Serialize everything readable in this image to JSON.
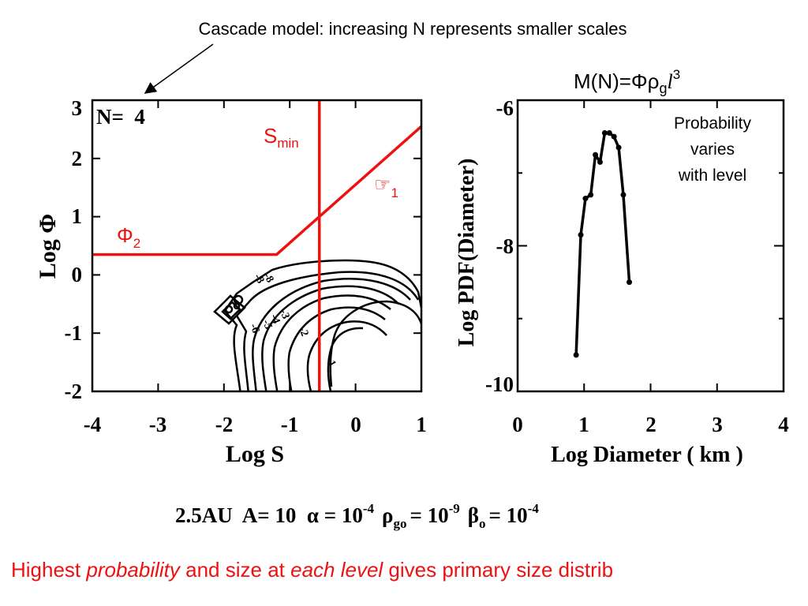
{
  "header": {
    "caption": "Cascade model: increasing N represents smaller scales"
  },
  "colors": {
    "red": "#ee1111",
    "black": "#000000"
  },
  "chart_data": [
    {
      "type": "contour",
      "panel_label": "N=  4",
      "xlabel": "Log S",
      "ylabel": "Log Φ",
      "xlim": [
        -4,
        1
      ],
      "ylim": [
        -2,
        3
      ],
      "x_ticks": [
        "-4",
        "-3",
        "-2",
        "-1",
        "0",
        "1"
      ],
      "y_ticks": [
        "-2",
        "-1",
        "0",
        "1",
        "2",
        "3"
      ],
      "contour_labels": [
        "-8",
        "-8",
        "-6",
        "-5",
        "-4",
        "-3",
        "-2",
        "-1"
      ],
      "annotations": {
        "smin": {
          "base": "S",
          "sub": "min"
        },
        "phi1": {
          "base": "☞",
          "sub": "1"
        },
        "phi2": {
          "base": "Φ",
          "sub": "2"
        }
      },
      "red_lines": {
        "phi_curve": {
          "x": [
            -4,
            -1.2,
            1
          ],
          "y": [
            0.35,
            0.35,
            2.55
          ]
        },
        "smin_x": -0.55
      }
    },
    {
      "type": "line",
      "xlabel": "Log Diameter ( km )",
      "ylabel": "Log PDF(Diameter)",
      "xlim": [
        0,
        4
      ],
      "ylim": [
        -10,
        -6
      ],
      "x_ticks": [
        "0",
        "1",
        "2",
        "3",
        "4"
      ],
      "y_ticks": [
        "-6",
        "-8",
        "-10"
      ],
      "formula": {
        "lhs": "M(N)=Φρ",
        "sub": "g",
        "var": "l",
        "sup": "3"
      },
      "note": [
        "Probability",
        "varies",
        "with level"
      ],
      "x": [
        0.88,
        0.95,
        1.02,
        1.1,
        1.17,
        1.24,
        1.31,
        1.38,
        1.45,
        1.52,
        1.59,
        1.68
      ],
      "y": [
        -9.5,
        -7.85,
        -7.35,
        -7.3,
        -6.75,
        -6.85,
        -6.45,
        -6.45,
        -6.5,
        -6.65,
        -7.3,
        -8.5
      ]
    }
  ],
  "params": {
    "text": "2.5AU  A= 10  α = 10",
    "alpha_exp": "-4",
    "rho_sym": "ρ",
    "rho_sub": "go",
    "rho_eq": "= 10",
    "rho_exp": "-9",
    "beta_sym": "β",
    "beta_sub": "o",
    "beta_eq": "= 10",
    "beta_exp": "-4"
  },
  "footer": {
    "part1": "Highest ",
    "part2": "probability",
    "part3": " and size at ",
    "part4": "each level",
    "part5": " gives primary size distrib"
  }
}
